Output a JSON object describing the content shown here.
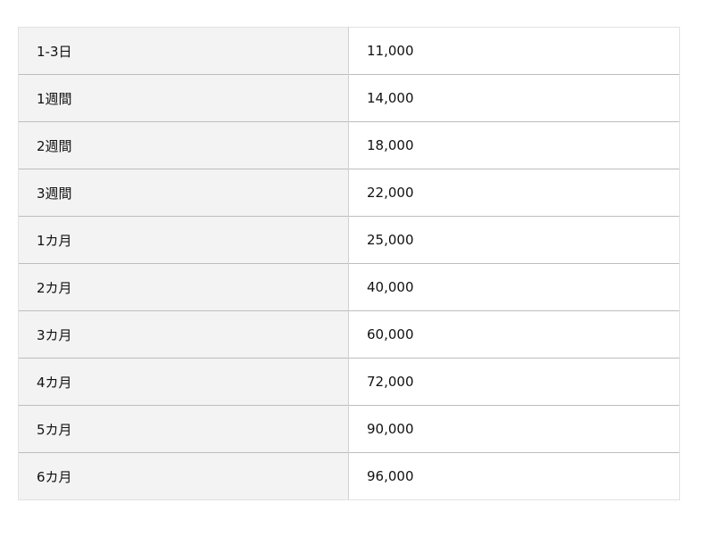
{
  "rows": [
    {
      "period": "1-3日",
      "price": "11,000"
    },
    {
      "period": "1週間",
      "price": "14,000"
    },
    {
      "period": "2週間",
      "price": "18,000"
    },
    {
      "period": "3週間",
      "price": "22,000"
    },
    {
      "period": "1カ月",
      "price": "25,000"
    },
    {
      "period": "2カ月",
      "price": "40,000"
    },
    {
      "period": "3カ月",
      "price": "60,000"
    },
    {
      "period": "4カ月",
      "price": "72,000"
    },
    {
      "period": "5カ月",
      "price": "90,000"
    },
    {
      "period": "6カ月",
      "price": "96,000"
    }
  ]
}
